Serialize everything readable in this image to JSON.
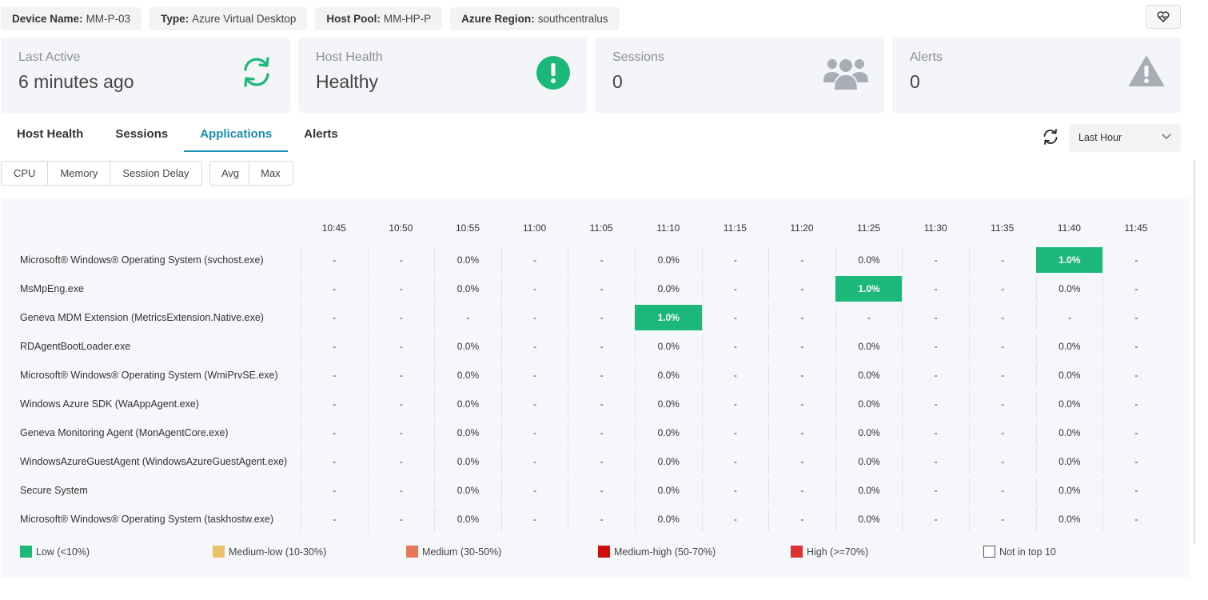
{
  "chips": [
    {
      "label": "Device Name:",
      "value": "MM-P-03"
    },
    {
      "label": "Type:",
      "value": "Azure Virtual Desktop"
    },
    {
      "label": "Host Pool:",
      "value": "MM-HP-P"
    },
    {
      "label": "Azure Region:",
      "value": "southcentralus"
    }
  ],
  "cards": {
    "last_active": {
      "label": "Last Active",
      "value": "6 minutes ago",
      "icon": "refresh-circle-icon"
    },
    "host_health": {
      "label": "Host Health",
      "value": "Healthy",
      "icon": "exclamation-circle-icon"
    },
    "sessions": {
      "label": "Sessions",
      "value": "0",
      "icon": "users-icon"
    },
    "alerts": {
      "label": "Alerts",
      "value": "0",
      "icon": "warning-icon"
    }
  },
  "tabs": [
    "Host Health",
    "Sessions",
    "Applications",
    "Alerts"
  ],
  "active_tab": "Applications",
  "time_range": "Last Hour",
  "metric_buttons": [
    "CPU",
    "Memory",
    "Session Delay"
  ],
  "agg_buttons": [
    "Avg",
    "Max"
  ],
  "times": [
    "10:45",
    "10:50",
    "10:55",
    "11:00",
    "11:05",
    "11:10",
    "11:15",
    "11:20",
    "11:25",
    "11:30",
    "11:35",
    "11:40",
    "11:45"
  ],
  "rows": [
    {
      "name": "Microsoft® Windows® Operating System (svchost.exe)",
      "cells": [
        "-",
        "-",
        "0.0%",
        "-",
        "-",
        "0.0%",
        "-",
        "-",
        "0.0%",
        "-",
        "-",
        "1.0%",
        "-"
      ],
      "hl": [
        11
      ]
    },
    {
      "name": "MsMpEng.exe",
      "cells": [
        "-",
        "-",
        "0.0%",
        "-",
        "-",
        "0.0%",
        "-",
        "-",
        "1.0%",
        "-",
        "-",
        "0.0%",
        "-"
      ],
      "hl": [
        8
      ]
    },
    {
      "name": "Geneva MDM Extension (MetricsExtension.Native.exe)",
      "cells": [
        "-",
        "-",
        "-",
        "-",
        "-",
        "1.0%",
        "-",
        "-",
        "-",
        "-",
        "-",
        "-",
        "-"
      ],
      "hl": [
        5
      ]
    },
    {
      "name": "RDAgentBootLoader.exe",
      "cells": [
        "-",
        "-",
        "0.0%",
        "-",
        "-",
        "0.0%",
        "-",
        "-",
        "0.0%",
        "-",
        "-",
        "0.0%",
        "-"
      ],
      "hl": []
    },
    {
      "name": "Microsoft® Windows® Operating System (WmiPrvSE.exe)",
      "cells": [
        "-",
        "-",
        "0.0%",
        "-",
        "-",
        "0.0%",
        "-",
        "-",
        "0.0%",
        "-",
        "-",
        "0.0%",
        "-"
      ],
      "hl": []
    },
    {
      "name": "Windows Azure SDK (WaAppAgent.exe)",
      "cells": [
        "-",
        "-",
        "0.0%",
        "-",
        "-",
        "0.0%",
        "-",
        "-",
        "0.0%",
        "-",
        "-",
        "0.0%",
        "-"
      ],
      "hl": []
    },
    {
      "name": "Geneva Monitoring Agent (MonAgentCore.exe)",
      "cells": [
        "-",
        "-",
        "0.0%",
        "-",
        "-",
        "0.0%",
        "-",
        "-",
        "0.0%",
        "-",
        "-",
        "0.0%",
        "-"
      ],
      "hl": []
    },
    {
      "name": "WindowsAzureGuestAgent (WindowsAzureGuestAgent.exe)",
      "cells": [
        "-",
        "-",
        "0.0%",
        "-",
        "-",
        "0.0%",
        "-",
        "-",
        "0.0%",
        "-",
        "-",
        "0.0%",
        "-"
      ],
      "hl": []
    },
    {
      "name": "Secure System",
      "cells": [
        "-",
        "-",
        "0.0%",
        "-",
        "-",
        "0.0%",
        "-",
        "-",
        "0.0%",
        "-",
        "-",
        "0.0%",
        "-"
      ],
      "hl": []
    },
    {
      "name": "Microsoft® Windows® Operating System (taskhostw.exe)",
      "cells": [
        "-",
        "-",
        "0.0%",
        "-",
        "-",
        "0.0%",
        "-",
        "-",
        "0.0%",
        "-",
        "-",
        "0.0%",
        "-"
      ],
      "hl": []
    }
  ],
  "legend": [
    {
      "label": "Low (<10%)",
      "color": "#1cb87a"
    },
    {
      "label": "Medium-low (10-30%)",
      "color": "#e9c46a"
    },
    {
      "label": "Medium (30-50%)",
      "color": "#e8775a"
    },
    {
      "label": "Medium-high (50-70%)",
      "color": "#d10d0d"
    },
    {
      "label": "High (>=70%)",
      "color": "#e03131"
    },
    {
      "label": "Not in top 10",
      "color": "#ffffff"
    }
  ],
  "colors": {
    "accent": "#1a8fb4",
    "healthy": "#1cb87a"
  }
}
